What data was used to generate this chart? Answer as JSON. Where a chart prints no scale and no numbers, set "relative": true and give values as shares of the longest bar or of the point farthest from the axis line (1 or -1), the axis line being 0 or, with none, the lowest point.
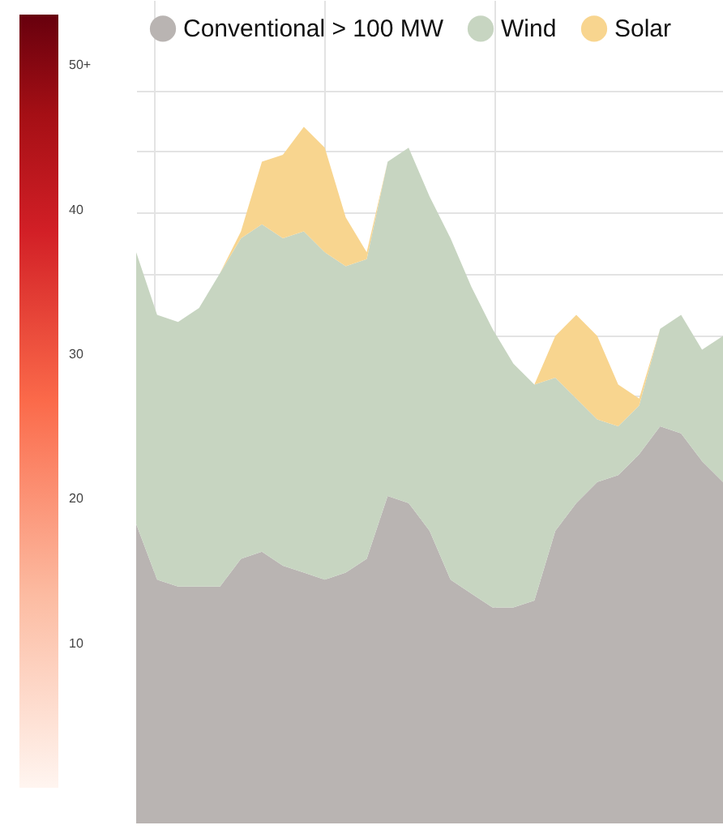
{
  "chart_data": {
    "type": "area",
    "stacked": true,
    "relative": true,
    "grid": true,
    "legend": "top",
    "categories": [
      null,
      null,
      null,
      null,
      null,
      null,
      null,
      null,
      null,
      null,
      null,
      null,
      null,
      null,
      null,
      null,
      null,
      null,
      null,
      null,
      null,
      null,
      null,
      null,
      null,
      null,
      null,
      null,
      null
    ],
    "series": [
      {
        "name": "Conventional > 100 MW",
        "color": "#b9b4b2",
        "values": [
          0.43,
          0.35,
          0.34,
          0.34,
          0.34,
          0.38,
          0.39,
          0.37,
          0.36,
          0.35,
          0.36,
          0.38,
          0.47,
          0.46,
          0.42,
          0.35,
          0.33,
          0.31,
          0.31,
          0.32,
          0.42,
          0.46,
          0.49,
          0.5,
          0.53,
          0.57,
          0.56,
          0.52,
          0.49
        ]
      },
      {
        "name": "Wind",
        "color": "#c7d5c1",
        "values": [
          0.39,
          0.38,
          0.38,
          0.4,
          0.45,
          0.46,
          0.47,
          0.47,
          0.49,
          0.47,
          0.44,
          0.43,
          0.48,
          0.51,
          0.48,
          0.49,
          0.44,
          0.4,
          0.35,
          0.31,
          0.22,
          0.15,
          0.09,
          0.07,
          0.07,
          0.14,
          0.17,
          0.16,
          0.21
        ]
      },
      {
        "name": "Solar",
        "color": "#f8d58f",
        "values": [
          0,
          0,
          0,
          0,
          0,
          0.01,
          0.09,
          0.12,
          0.15,
          0.15,
          0.07,
          0.01,
          0,
          0,
          0,
          0,
          0,
          0,
          0,
          0,
          0.06,
          0.12,
          0.12,
          0.06,
          0.01,
          0,
          0,
          0,
          0
        ]
      }
    ],
    "clim": [
      0,
      53.5
    ],
    "cticks": [
      10,
      20,
      30,
      40,
      {
        "value": 50,
        "label": "50+"
      }
    ]
  }
}
